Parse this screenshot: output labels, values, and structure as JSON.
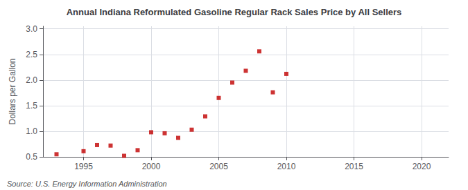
{
  "chart_data": {
    "type": "scatter",
    "title": "Annual Indiana Reformulated Gasoline Regular Rack Sales Price by All Sellers",
    "ylabel": "Dollars per Gallon",
    "annotations": [
      "Source: U.S. Energy Information Administration"
    ],
    "x": [
      1993,
      1995,
      1996,
      1997,
      1998,
      1999,
      2000,
      2001,
      2002,
      2003,
      2004,
      2005,
      2006,
      2007,
      2008,
      2009,
      2010
    ],
    "values": [
      0.55,
      0.61,
      0.73,
      0.72,
      0.52,
      0.63,
      0.98,
      0.96,
      0.87,
      1.03,
      1.29,
      1.65,
      1.95,
      2.18,
      2.56,
      1.76,
      2.12
    ],
    "color": "#c00000",
    "marker": "square",
    "xlim": [
      1992,
      2022
    ],
    "ylim": [
      0.5,
      3.05
    ],
    "xticks": [
      1995,
      2000,
      2005,
      2010,
      2015,
      2020
    ],
    "yticks": [
      0.5,
      {
        "value": 1.0,
        "label": "1.0"
      },
      1.5,
      {
        "value": 2.0,
        "label": "2.0"
      },
      2.5,
      {
        "value": 3.0,
        "label": "3.0"
      }
    ],
    "grid": true
  }
}
